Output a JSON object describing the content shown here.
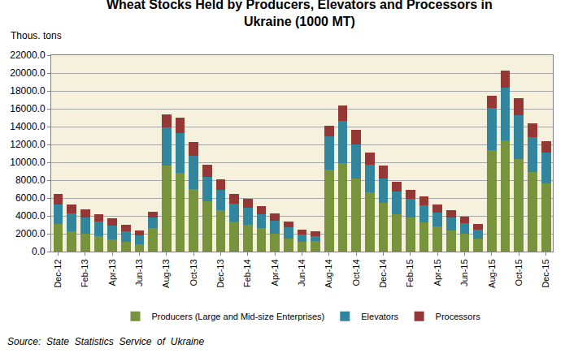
{
  "chart_data": {
    "type": "bar",
    "title": "Wheat Stocks Held by Producers, Elevators and Processors in Ukraine (1000 MT)",
    "y_label": "Thous. tons",
    "source": "Source:  State  Statistics  Service  of  Ukraine",
    "stacked": true,
    "grid": true,
    "legend": "bottom",
    "categories": [
      "Dec-12",
      null,
      "Feb-13",
      null,
      "Apr-13",
      null,
      "Jun-13",
      null,
      "Aug-13",
      null,
      "Oct-13",
      null,
      "Dec-13",
      null,
      "Feb-14",
      null,
      "Apr-14",
      null,
      "Jun-14",
      null,
      "Aug-14",
      null,
      "Oct-14",
      null,
      "Dec-14",
      null,
      "Feb-15",
      null,
      "Apr-15",
      null,
      "Jun-15",
      null,
      "Aug-15",
      null,
      "Oct-15",
      null,
      "Dec-15"
    ],
    "series": [
      {
        "name": "Producers (Large and Mid-size Enterprises)",
        "color": "#77933c",
        "values": [
          3100,
          2300,
          2000,
          1700,
          1400,
          1100,
          800,
          2600,
          9600,
          8800,
          7000,
          5600,
          4600,
          3400,
          3000,
          2600,
          2000,
          1500,
          1100,
          1200,
          9200,
          9900,
          8200,
          6600,
          5500,
          4200,
          3800,
          3300,
          2800,
          2400,
          2000,
          1500,
          11400,
          12500,
          10400,
          8900,
          7600
        ]
      },
      {
        "name": "Elevators",
        "color": "#31859c",
        "values": [
          2200,
          2000,
          1800,
          1700,
          1500,
          1200,
          1000,
          1200,
          4300,
          4500,
          3700,
          2800,
          2300,
          2000,
          1900,
          1600,
          1500,
          1200,
          800,
          500,
          3700,
          4700,
          3800,
          3100,
          2700,
          2500,
          2100,
          1900,
          1600,
          1400,
          1200,
          1000,
          4700,
          5900,
          4900,
          3900,
          3500
        ]
      },
      {
        "name": "Processors",
        "color": "#953735",
        "values": [
          1200,
          1000,
          900,
          800,
          800,
          700,
          600,
          700,
          1500,
          1700,
          1600,
          1300,
          1200,
          1100,
          1000,
          900,
          800,
          700,
          600,
          600,
          1200,
          1800,
          1600,
          1400,
          1400,
          1100,
          1000,
          1000,
          900,
          800,
          700,
          600,
          1400,
          1900,
          1900,
          1600,
          1300
        ]
      }
    ],
    "ylim": [
      0,
      22000
    ],
    "yticks": [
      {
        "value": 0,
        "label": "0.0"
      },
      {
        "value": 2000,
        "label": "2000.0"
      },
      {
        "value": 4000,
        "label": "4000.0"
      },
      {
        "value": 6000,
        "label": "6000.0"
      },
      {
        "value": 8000,
        "label": "8000.0"
      },
      {
        "value": 10000,
        "label": "10000.0"
      },
      {
        "value": 12000,
        "label": "12000.0"
      },
      {
        "value": 14000,
        "label": "14000.0"
      },
      {
        "value": 16000,
        "label": "16000.0"
      },
      {
        "value": 18000,
        "label": "18000.0"
      },
      {
        "value": 20000,
        "label": "20000.0"
      },
      {
        "value": 22000,
        "label": "22000.0"
      }
    ]
  }
}
